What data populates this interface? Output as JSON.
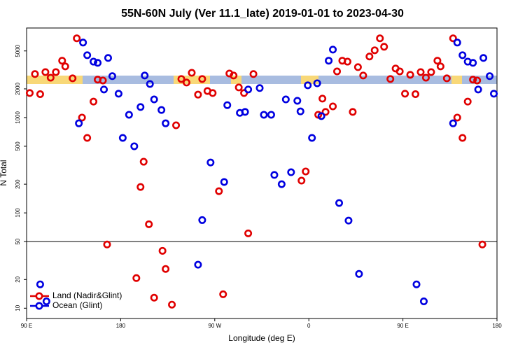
{
  "chart_data": {
    "type": "scatter",
    "title": "55N-60N July (Ver 11.1_late)   2019-01-01 to 2023-04-30",
    "xlabel": "Longitude (deg E)",
    "ylabel": "N Total",
    "xlim": [
      90,
      540
    ],
    "xticks": [
      {
        "value": 90,
        "label": "90 E"
      },
      180,
      {
        "value": 270,
        "label": "90 W"
      },
      {
        "value": 360,
        "label": "0"
      },
      {
        "value": 450,
        "label": "90 E"
      },
      {
        "value": 540,
        "label": "180"
      }
    ],
    "ylim": [
      7.8,
      8700
    ],
    "yticks": [
      10,
      20,
      50,
      100,
      200,
      500,
      1000,
      2000,
      5000
    ],
    "ylog": true,
    "reference_line": 50,
    "legend": "lower left",
    "series": [
      {
        "name": "Land (Nadir&Glint)",
        "color": "#e00000",
        "x": [
          93,
          98,
          103,
          108,
          113,
          118,
          124,
          127,
          134,
          138,
          143,
          148,
          154,
          158,
          163,
          167,
          195,
          199,
          202,
          207,
          212,
          220,
          223,
          229,
          233,
          238,
          243,
          248,
          254,
          258,
          263,
          268,
          274,
          278,
          284,
          288,
          293,
          298,
          302,
          307,
          353,
          357,
          369,
          373,
          376,
          383,
          387,
          392,
          397,
          402,
          407,
          412,
          418,
          423,
          428,
          432,
          438,
          443,
          447,
          452,
          457,
          462,
          467,
          472,
          477,
          483,
          486,
          492,
          498,
          502,
          507,
          512,
          517,
          521,
          526
        ],
        "values": [
          1808,
          2860,
          1760,
          3000,
          2620,
          3000,
          3950,
          3440,
          2580,
          6780,
          1000,
          612,
          1470,
          2500,
          2450,
          46.6,
          20.7,
          187,
          344,
          76,
          12.9,
          40,
          25.8,
          10.9,
          830,
          2540,
          2330,
          2950,
          1740,
          2540,
          1900,
          1808,
          169,
          14,
          2900,
          2760,
          2070,
          1808,
          61,
          2860,
          218,
          272,
          1070,
          1580,
          1146,
          1310,
          3050,
          3950,
          3860,
          1146,
          3380,
          2760,
          4370,
          5080,
          6780,
          5530,
          2540,
          3270,
          3050,
          1780,
          2810,
          1760,
          3000,
          2620,
          3000,
          3950,
          3440,
          2580,
          6780,
          1000,
          612,
          1470,
          2500,
          2450,
          46.6
        ]
      },
      {
        "name": "Ocean (Glint)",
        "color": "#0000e0",
        "x": [
          103,
          109,
          140,
          144,
          148,
          154,
          158,
          164,
          168,
          172,
          178,
          182,
          188,
          193,
          199,
          203,
          208,
          212,
          219,
          223,
          254,
          258,
          266,
          279,
          282,
          294,
          299,
          302,
          313,
          317,
          324,
          327,
          334,
          338,
          343,
          349,
          352,
          359,
          363,
          368,
          372,
          379,
          383,
          389,
          398,
          408,
          463,
          470,
          498,
          502,
          507,
          512,
          517,
          522,
          527,
          533,
          537
        ],
        "values": [
          17.8,
          11.8,
          870,
          6120,
          4510,
          3860,
          3750,
          1970,
          4220,
          2720,
          1780,
          612,
          1070,
          500,
          1290,
          2760,
          2250,
          1550,
          1200,
          870,
          28.6,
          84,
          338,
          211,
          1350,
          1120,
          1146,
          1970,
          2040,
          1070,
          1070,
          250,
          200,
          1550,
          267,
          1500,
          1160,
          2180,
          612,
          2290,
          1036,
          3950,
          5160,
          127,
          83,
          22.9,
          17.8,
          11.8,
          870,
          6120,
          4510,
          3860,
          3750,
          1970,
          4220,
          2720,
          1780
        ]
      }
    ]
  }
}
